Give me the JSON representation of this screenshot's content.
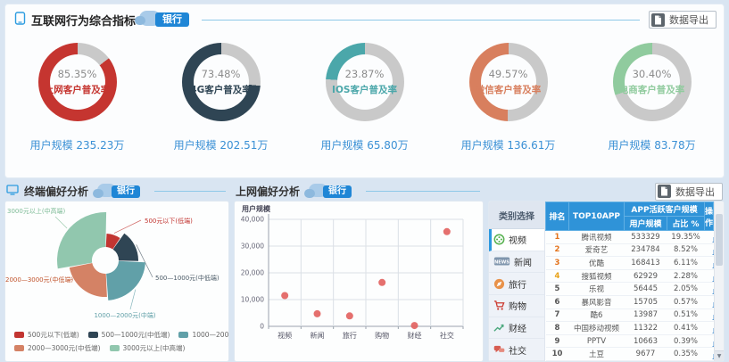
{
  "header": {
    "title": "互联网行为综合指标",
    "badge": "银行",
    "export_label": "数据导出"
  },
  "kpi_donuts": {
    "track_color": "#c9c9c9",
    "items": [
      {
        "percent": "85.35%",
        "value": 85.35,
        "label": "上网客户普及率",
        "user_scale": "用户规模 235.23万",
        "color": "#c53530"
      },
      {
        "percent": "73.48%",
        "value": 73.48,
        "label": "4G客户普及率",
        "user_scale": "用户规模 202.51万",
        "color": "#2f4554"
      },
      {
        "percent": "23.87%",
        "value": 23.87,
        "label": "IOS客户普及率",
        "user_scale": "用户规模 65.80万",
        "color": "#4ba7aa"
      },
      {
        "percent": "49.57%",
        "value": 49.57,
        "label": "微信客户普及率",
        "user_scale": "用户规模 136.61万",
        "color": "#d87f5e"
      },
      {
        "percent": "30.40%",
        "value": 30.4,
        "label": "电商客户普及率",
        "user_scale": "用户规模 83.78万",
        "color": "#90cb9e"
      }
    ]
  },
  "terminal_panel": {
    "title": "终端偏好分析",
    "badge": "银行"
  },
  "online_panel": {
    "title": "上网偏好分析",
    "badge": "银行"
  },
  "table_panel": {
    "export_label": "数据导出",
    "category_header": "类别选择",
    "categories": [
      {
        "label": "视频",
        "icon": "film-reel-icon",
        "selected": true
      },
      {
        "label": "新闻",
        "icon": "news-icon",
        "selected": false
      },
      {
        "label": "旅行",
        "icon": "compass-icon",
        "selected": false
      },
      {
        "label": "购物",
        "icon": "cart-icon",
        "selected": false
      },
      {
        "label": "财经",
        "icon": "trend-icon",
        "selected": false
      },
      {
        "label": "社交",
        "icon": "chat-icon",
        "selected": false
      }
    ],
    "columns": {
      "rank": "排名",
      "app": "TOP10APP",
      "group": "APP活跃客户规模",
      "scale": "用户规模",
      "ratio": "占比 %",
      "ops": "操作"
    },
    "rows": [
      {
        "rank": 1,
        "app": "腾讯视频",
        "scale": "533329",
        "ratio": "19.35%"
      },
      {
        "rank": 2,
        "app": "爱奇艺",
        "scale": "234784",
        "ratio": "8.52%"
      },
      {
        "rank": 3,
        "app": "优酷",
        "scale": "168413",
        "ratio": "6.11%"
      },
      {
        "rank": 4,
        "app": "搜狐视频",
        "scale": "62929",
        "ratio": "2.28%"
      },
      {
        "rank": 5,
        "app": "乐视",
        "scale": "56445",
        "ratio": "2.05%"
      },
      {
        "rank": 6,
        "app": "暴风影音",
        "scale": "15705",
        "ratio": "0.57%"
      },
      {
        "rank": 7,
        "app": "酷6",
        "scale": "13987",
        "ratio": "0.51%"
      },
      {
        "rank": 8,
        "app": "中国移动视频",
        "scale": "11322",
        "ratio": "0.41%"
      },
      {
        "rank": 9,
        "app": "PPTV",
        "scale": "10663",
        "ratio": "0.39%"
      },
      {
        "rank": 10,
        "app": "土豆",
        "scale": "9677",
        "ratio": "0.35%"
      }
    ]
  },
  "chart_data": [
    {
      "type": "pie",
      "subtype": "kpi-donuts",
      "title": "互联网行为综合指标",
      "unit": "%",
      "series": [
        {
          "name": "上网客户普及率",
          "value": 85.35,
          "user_scale": "235.23万"
        },
        {
          "name": "4G客户普及率",
          "value": 73.48,
          "user_scale": "202.51万"
        },
        {
          "name": "IOS客户普及率",
          "value": 23.87,
          "user_scale": "65.80万"
        },
        {
          "name": "微信客户普及率",
          "value": 49.57,
          "user_scale": "136.61万"
        },
        {
          "name": "电商客户普及率",
          "value": 30.4,
          "user_scale": "83.78万"
        }
      ]
    },
    {
      "type": "pie",
      "subtype": "rose",
      "title": "终端偏好分析",
      "labels": [
        "500元以下(低端)",
        "500—1000元(中低端)",
        "1000—2000元(中端)",
        "2000—3000元(中低端)",
        "3000元以上(中高端)"
      ],
      "values": [
        9,
        16,
        23.5,
        23,
        28.5
      ],
      "colors": [
        "#c23531",
        "#2f4554",
        "#61a0a8",
        "#d48265",
        "#91c7ae"
      ],
      "legend_position": "bottom"
    },
    {
      "type": "scatter",
      "title": "上网偏好分析",
      "categories": [
        "视频",
        "新闻",
        "旅行",
        "购物",
        "财经",
        "社交"
      ],
      "values": [
        11500,
        4700,
        3900,
        16400,
        300,
        35400
      ],
      "ylabel": "用户规模",
      "ylim": [
        0,
        40000
      ],
      "ytick_labels": [
        "0",
        "10,000",
        "20,000",
        "30,000",
        "40,000"
      ],
      "grid": true,
      "point_color": "#e2615e"
    }
  ]
}
